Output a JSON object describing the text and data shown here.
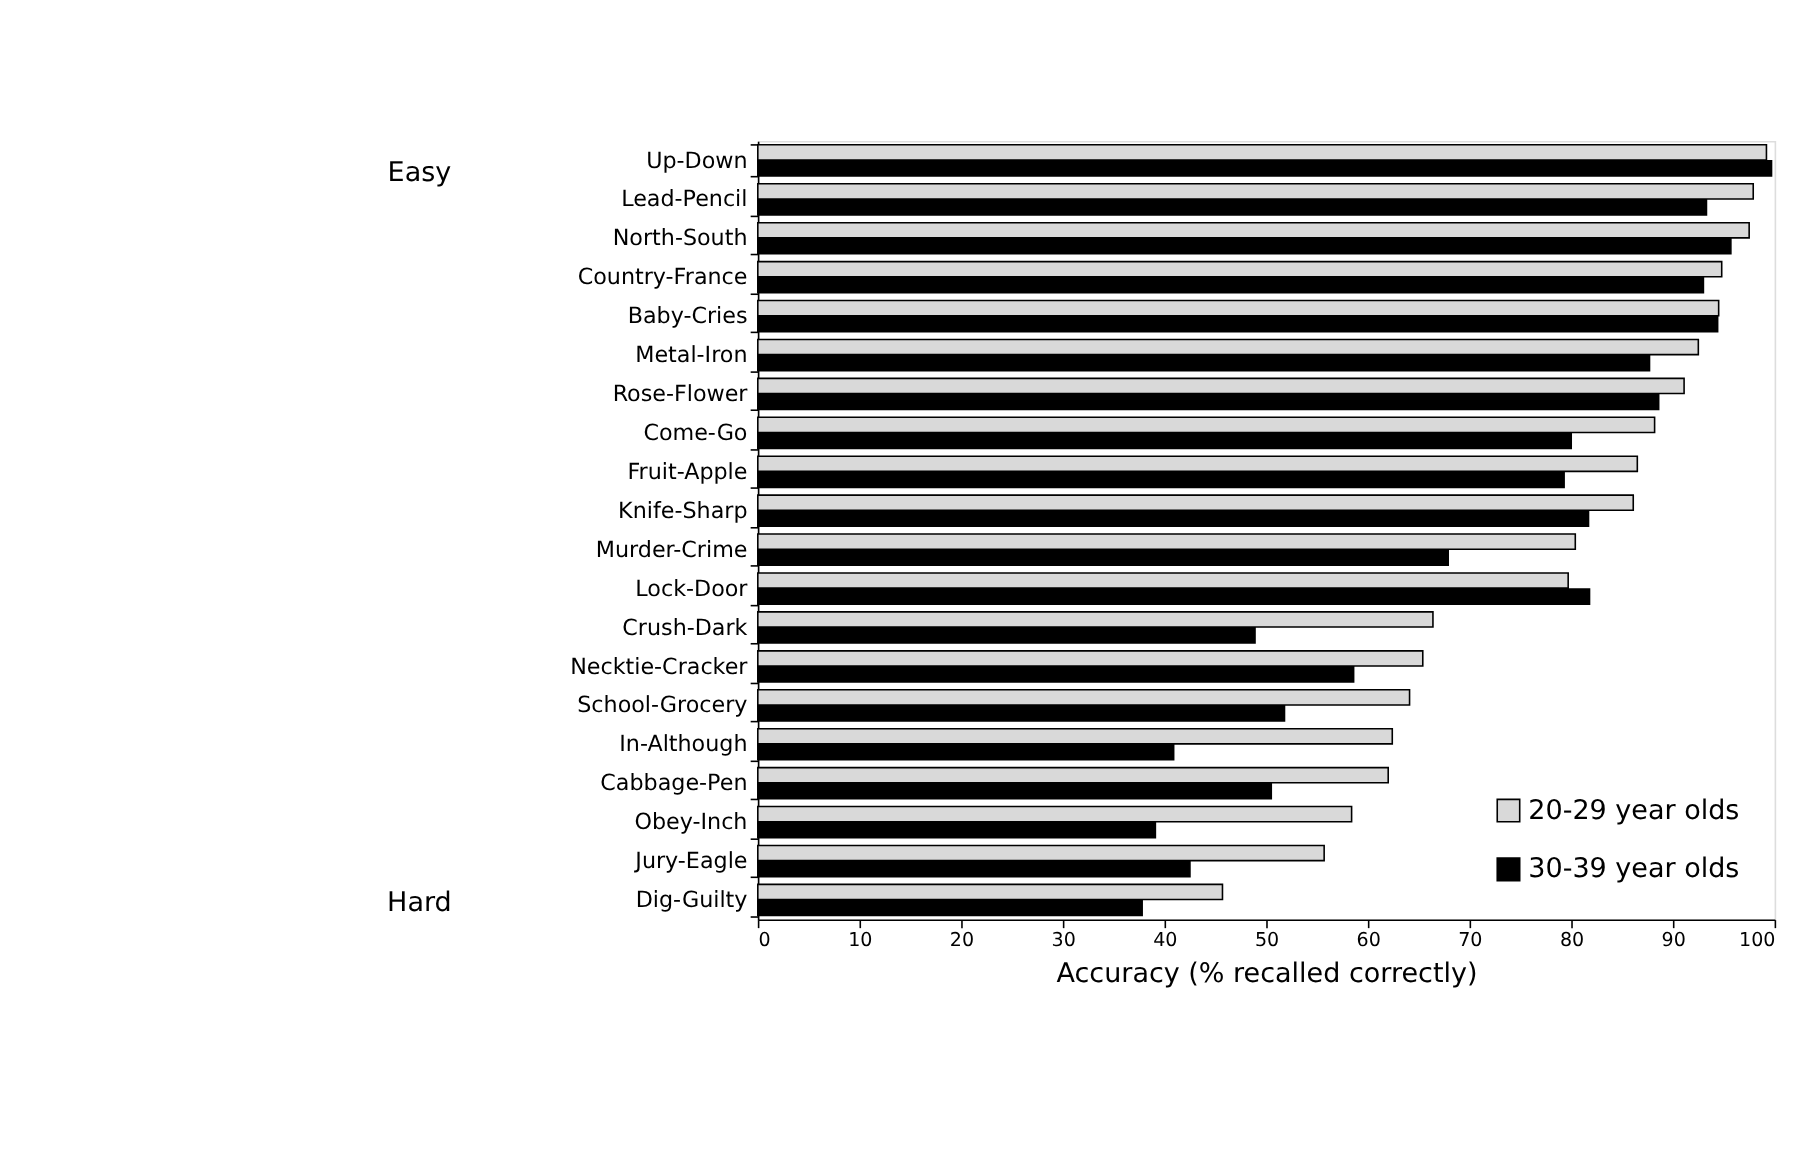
{
  "chart_data": {
    "type": "bar",
    "orientation": "horizontal",
    "xlabel": "Accuracy (% recalled correctly)",
    "categories": [
      "Up-Down",
      "Lead-Pencil",
      "North-South",
      "Country-France",
      "Baby-Cries",
      "Metal-Iron",
      "Rose-Flower",
      "Come-Go",
      "Fruit-Apple",
      "Knife-Sharp",
      "Murder-Crime",
      "Lock-Door",
      "Crush-Dark",
      "Necktie-Cracker",
      "School-Grocery",
      "In-Although",
      "Cabbage-Pen",
      "Obey-Inch",
      "Jury-Eagle",
      "Dig-Guilty"
    ],
    "series": [
      {
        "name": "20-29 year olds",
        "color": "#d9d9d9",
        "values": [
          99.2,
          97.9,
          97.5,
          94.8,
          94.5,
          92.5,
          91.1,
          88.2,
          86.5,
          86.1,
          80.4,
          79.7,
          66.4,
          65.4,
          64.1,
          62.4,
          62.0,
          58.4,
          55.7,
          45.7
        ]
      },
      {
        "name": "30-39 year olds",
        "color": "#000000",
        "values": [
          99.7,
          93.3,
          95.7,
          93.0,
          94.4,
          87.7,
          88.6,
          80.0,
          79.3,
          81.7,
          67.9,
          81.8,
          48.9,
          58.6,
          51.8,
          40.9,
          50.5,
          39.1,
          42.5,
          37.8
        ]
      }
    ],
    "xlim": [
      0,
      100
    ],
    "xticks": [
      0,
      10,
      20,
      30,
      40,
      50,
      60,
      70,
      80,
      90,
      100
    ],
    "grid": false,
    "legend": "bottom right",
    "annotations": [
      "Easy",
      "Hard"
    ]
  }
}
